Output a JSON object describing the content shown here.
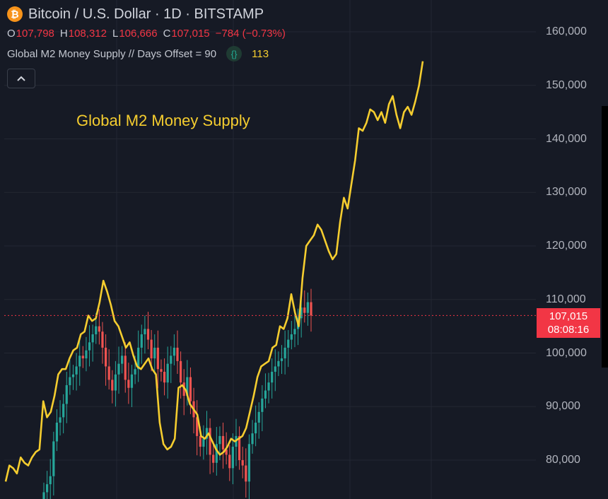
{
  "header": {
    "coin_icon": "bitcoin-icon",
    "title": "Bitcoin / U.S. Dollar · 1D · BITSTAMP",
    "ohlc": {
      "o_label": "O",
      "o_value": "107,798",
      "h_label": "H",
      "h_value": "108,312",
      "l_label": "L",
      "l_value": "106,666",
      "c_label": "C",
      "c_value": "107,015",
      "change": "−784 (−0.73%)"
    },
    "indicator": {
      "name": "Global M2 Money Supply // Days Offset = 90",
      "badge": "{}",
      "value": "113"
    },
    "collapse_icon": "chevron-up-icon"
  },
  "annotation": "Global M2 Money Supply",
  "price_tag": {
    "price": "107,015",
    "countdown": "08:08:16"
  },
  "colors": {
    "background": "#161a25",
    "grid": "#232732",
    "candle_up": "#26a69a",
    "candle_down": "#ef5350",
    "m2_line": "#f5cd2f",
    "price_tag": "#f23645",
    "bitcoin": "#f7931a"
  },
  "chart_data": {
    "type": "line",
    "title": "Bitcoin / U.S. Dollar · 1D · BITSTAMP",
    "ylabel": "",
    "ylim": [
      74000,
      162000
    ],
    "y_ticks": [
      "160,000",
      "150,000",
      "140,000",
      "130,000",
      "120,000",
      "110,000",
      "100,000",
      "90,000",
      "80,000"
    ],
    "y_tick_values": [
      160000,
      150000,
      140000,
      130000,
      120000,
      110000,
      100000,
      90000,
      80000
    ],
    "last_price": 107015,
    "grid": true,
    "series": [
      {
        "name": "Global M2 Money Supply",
        "type": "line",
        "values": [
          76000,
          79000,
          78500,
          77500,
          80500,
          79500,
          79000,
          80500,
          81500,
          82000,
          91000,
          88000,
          89000,
          92000,
          96000,
          97000,
          97000,
          99000,
          100500,
          101000,
          103500,
          104000,
          107000,
          106000,
          106500,
          109500,
          113500,
          111500,
          109000,
          106000,
          105000,
          103000,
          101000,
          102000,
          99500,
          97500,
          97000,
          98000,
          99000,
          97000,
          96000,
          87000,
          83000,
          82000,
          82500,
          84000,
          93500,
          94000,
          93000,
          90500,
          89500,
          88500,
          84500,
          84000,
          85000,
          83500,
          82000,
          81000,
          81500,
          82500,
          84000,
          83500,
          84000,
          84500,
          86000,
          89000,
          92000,
          95500,
          97500,
          98000,
          98500,
          101000,
          101500,
          105000,
          104500,
          106500,
          111000,
          107500,
          105000,
          114000,
          120000,
          121000,
          122000,
          124000,
          123000,
          121000,
          119000,
          117500,
          118500,
          124500,
          129000,
          127000,
          131500,
          136000,
          142000,
          141500,
          143000,
          145500,
          145000,
          143500,
          145000,
          143000,
          146500,
          148000,
          144500,
          142000,
          145000,
          146000,
          144500,
          147000,
          150000,
          154500
        ]
      },
      {
        "name": "",
        "type": "candlestick",
        "description_note": "daily candles, close values",
        "values": [
          74000,
          75500,
          77000,
          83500,
          87000,
          88000,
          90500,
          94000,
          95500,
          96000,
          97500,
          99500,
          99000,
          100500,
          102000,
          103500,
          105000,
          104000,
          101000,
          97500,
          95000,
          93000,
          96000,
          98000,
          99500,
          95000,
          93500,
          96000,
          97000,
          101000,
          103500,
          104500,
          102500,
          99000,
          101000,
          97000,
          96500,
          94500,
          98000,
          99500,
          101000,
          98500,
          94500,
          92000,
          95500,
          91000,
          88000,
          84500,
          82500,
          84000,
          86000,
          81000,
          79500,
          83000,
          84500,
          82000,
          81000,
          78500,
          82500,
          84500,
          80000,
          79000,
          76000,
          83000,
          85000,
          87000,
          89000,
          91500,
          93000,
          94500,
          96500,
          97500,
          98500,
          99000,
          101000,
          102500,
          103500,
          104500,
          106500,
          108500,
          107500,
          109500,
          107015
        ]
      }
    ]
  }
}
